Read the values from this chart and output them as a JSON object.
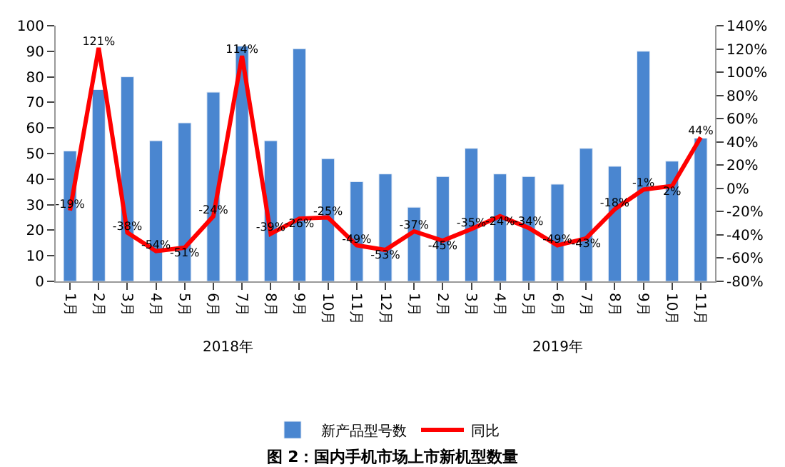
{
  "chart_data": {
    "type": "bar",
    "title": "图 2：国内手机市场上市新机型数量",
    "categories": [
      "1月",
      "2月",
      "3月",
      "4月",
      "5月",
      "6月",
      "7月",
      "8月",
      "9月",
      "10月",
      "11月",
      "12月",
      "1月",
      "2月",
      "3月",
      "4月",
      "5月",
      "6月",
      "7月",
      "8月",
      "9月",
      "10月",
      "11月"
    ],
    "series": [
      {
        "name": "新产品型号数",
        "color": "#4a86d0",
        "values": [
          51,
          75,
          80,
          55,
          62,
          74,
          92,
          55,
          91,
          48,
          39,
          42,
          29,
          41,
          52,
          42,
          41,
          38,
          52,
          45,
          90,
          47,
          56
        ]
      },
      {
        "name": "同比",
        "color": "#ff0000",
        "type": "line",
        "axis": "y2",
        "values": [
          -19,
          121,
          -38,
          -54,
          -51,
          -24,
          114,
          -39,
          -26,
          -25,
          -49,
          -53,
          -37,
          -45,
          -35,
          -24,
          -34,
          -49,
          -43,
          -18,
          -1,
          2,
          44
        ],
        "value_labels": [
          "-19%",
          "121%",
          "-38%",
          "-54%",
          "-51%",
          "-24%",
          "114%",
          "-39%",
          "-26%",
          "-25%",
          "-49%",
          "-53%",
          "-37%",
          "-45%",
          "-35%",
          "-24%",
          "-34%",
          "-49%",
          "-43%",
          "-18%",
          "-1%",
          "2%",
          "44%"
        ]
      }
    ],
    "annotations": [
      "2018年",
      "2019年"
    ],
    "ylim": [
      0,
      100
    ],
    "yticks": [
      0,
      10,
      20,
      30,
      40,
      50,
      60,
      70,
      80,
      90,
      100
    ],
    "y2lim": [
      -80,
      140
    ],
    "y2ticks": [
      {
        "value": -80,
        "label": "-80%"
      },
      {
        "value": -60,
        "label": "-60%"
      },
      {
        "value": -40,
        "label": "-40%"
      },
      {
        "value": -20,
        "label": "-20%"
      },
      {
        "value": 0,
        "label": "0%"
      },
      {
        "value": 20,
        "label": "20%"
      },
      {
        "value": 40,
        "label": "40%"
      },
      {
        "value": 60,
        "label": "60%"
      },
      {
        "value": 80,
        "label": "80%"
      },
      {
        "value": 100,
        "label": "100%"
      },
      {
        "value": 120,
        "label": "120%"
      },
      {
        "value": 140,
        "label": "140%"
      }
    ],
    "legend": "bottom",
    "marker": "none",
    "line_style": "solid"
  }
}
